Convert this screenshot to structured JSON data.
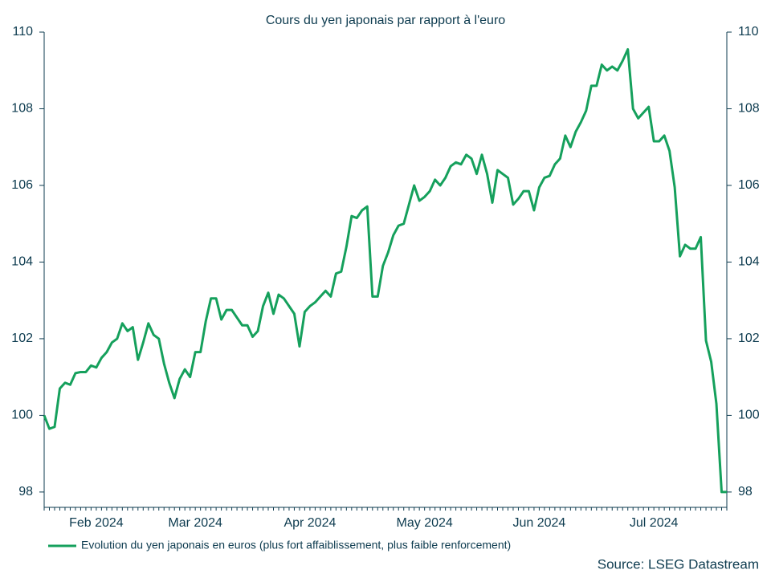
{
  "chart_data": {
    "type": "line",
    "title": "Cours du yen japonais par rapport à l'euro",
    "source": "Source: LSEG Datastream",
    "categories": [
      null,
      null,
      null,
      null,
      null,
      null,
      null,
      null,
      null,
      null,
      "Feb 2024",
      null,
      null,
      null,
      null,
      null,
      null,
      null,
      null,
      null,
      null,
      null,
      null,
      null,
      null,
      null,
      null,
      null,
      null,
      "Mar 2024",
      null,
      null,
      null,
      null,
      null,
      null,
      null,
      null,
      null,
      null,
      null,
      null,
      null,
      null,
      null,
      null,
      null,
      null,
      null,
      null,
      null,
      "Apr 2024",
      null,
      null,
      null,
      null,
      null,
      null,
      null,
      null,
      null,
      null,
      null,
      null,
      null,
      null,
      null,
      null,
      null,
      null,
      null,
      null,
      null,
      "May 2024",
      null,
      null,
      null,
      null,
      null,
      null,
      null,
      null,
      null,
      null,
      null,
      null,
      null,
      null,
      null,
      null,
      null,
      null,
      null,
      null,
      null,
      "Jun 2024",
      null,
      null,
      null,
      null,
      null,
      null,
      null,
      null,
      null,
      null,
      null,
      null,
      null,
      null,
      null,
      null,
      null,
      null,
      null,
      null,
      null,
      "Jul 2024",
      null,
      null,
      null,
      null,
      null,
      null,
      null,
      null,
      null,
      null,
      null,
      null,
      null,
      null
    ],
    "series": [
      {
        "name": "Evolution du yen japonais en euros (plus fort affaiblissement, plus faible renforcement)",
        "color": "#15a05c",
        "values": [
          100.0,
          99.65,
          99.7,
          100.7,
          100.85,
          100.8,
          101.1,
          101.13,
          101.13,
          101.3,
          101.25,
          101.5,
          101.65,
          101.9,
          102.0,
          102.4,
          102.2,
          102.3,
          101.45,
          101.9,
          102.4,
          102.1,
          102.0,
          101.35,
          100.85,
          100.45,
          100.95,
          101.2,
          101.0,
          101.65,
          101.65,
          102.45,
          103.05,
          103.05,
          102.5,
          102.75,
          102.75,
          102.55,
          102.35,
          102.35,
          102.05,
          102.2,
          102.85,
          103.2,
          102.65,
          103.15,
          103.05,
          102.85,
          102.65,
          101.8,
          102.7,
          102.85,
          102.95,
          103.1,
          103.25,
          103.1,
          103.7,
          103.75,
          104.4,
          105.2,
          105.15,
          105.35,
          105.45,
          103.1,
          103.1,
          103.9,
          104.25,
          104.7,
          104.95,
          105.0,
          105.5,
          106.0,
          105.6,
          105.7,
          105.85,
          106.15,
          106.0,
          106.2,
          106.5,
          106.6,
          106.55,
          106.8,
          106.7,
          106.3,
          106.8,
          106.3,
          105.55,
          106.4,
          106.3,
          106.2,
          105.5,
          105.65,
          105.85,
          105.85,
          105.35,
          105.95,
          106.2,
          106.25,
          106.55,
          106.7,
          107.3,
          107.0,
          107.4,
          107.65,
          107.95,
          108.6,
          108.6,
          109.15,
          109.0,
          109.1,
          109.0,
          109.25,
          109.55,
          108.0,
          107.75,
          107.9,
          108.05,
          107.15,
          107.15,
          107.3,
          106.9,
          105.95,
          104.15,
          104.45,
          104.35,
          104.35,
          104.65,
          101.95,
          101.4,
          100.3,
          98.0,
          98.0
        ]
      }
    ],
    "ylim": [
      97.6,
      110
    ],
    "yticks": [
      98,
      100,
      102,
      104,
      106,
      108,
      110
    ],
    "mirror_y_axis": true,
    "grid": false,
    "legend": "bottom"
  }
}
